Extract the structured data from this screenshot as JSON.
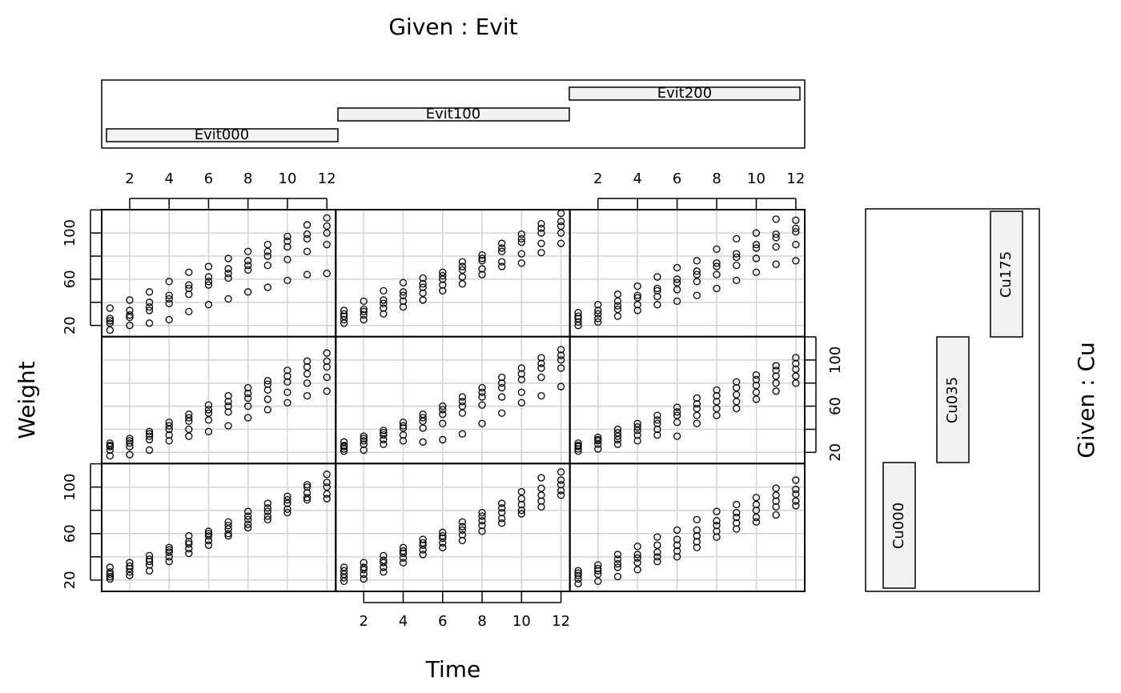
{
  "chart_data": {
    "type": "scatter",
    "xlabel": "Time",
    "ylabel": "Weight",
    "given_top": {
      "title": "Given : Evit",
      "levels": [
        "Evit000",
        "Evit100",
        "Evit200"
      ]
    },
    "given_right": {
      "title": "Given : Cu",
      "levels": [
        "Cu000",
        "Cu035",
        "Cu175"
      ]
    },
    "x": [
      1,
      2,
      3,
      4,
      5,
      6,
      7,
      8,
      9,
      10,
      11,
      12
    ],
    "xlim": [
      0.58,
      12.45
    ],
    "ylim": [
      10.3,
      120.2
    ],
    "xticks": [
      2,
      4,
      6,
      8,
      10,
      12
    ],
    "yticks": [
      20,
      40,
      60,
      80,
      100,
      120
    ],
    "ytick_labels": [
      20,
      60,
      100
    ],
    "grid": true,
    "color": "#000000",
    "panels": [
      {
        "values": [
          [
            16,
            24,
            26,
            35,
            22
          ],
          [
            20,
            27,
            33,
            42,
            29
          ],
          [
            22,
            33,
            36,
            49,
            40
          ],
          [
            25,
            39,
            43,
            58,
            46
          ],
          [
            32,
            47,
            52,
            66,
            55
          ],
          [
            38,
            55,
            58,
            71,
            62
          ],
          [
            43,
            61,
            65,
            78,
            69
          ],
          [
            49,
            68,
            72,
            84,
            76
          ],
          [
            53,
            72,
            80,
            90,
            84
          ],
          [
            59,
            77,
            88,
            97,
            93
          ],
          [
            64,
            84,
            95,
            107,
            99
          ],
          [
            65,
            90,
            100,
            113,
            106
          ]
        ]
      },
      {
        "values": [
          [
            22,
            25,
            28,
            33,
            30
          ],
          [
            25,
            29,
            32,
            41,
            34
          ],
          [
            30,
            35,
            39,
            50,
            42
          ],
          [
            36,
            41,
            46,
            57,
            49
          ],
          [
            42,
            48,
            53,
            61,
            56
          ],
          [
            50,
            55,
            60,
            66,
            63
          ],
          [
            56,
            62,
            68,
            75,
            71
          ],
          [
            64,
            69,
            76,
            81,
            78
          ],
          [
            71,
            75,
            84,
            91,
            87
          ],
          [
            74,
            82,
            92,
            99,
            95
          ],
          [
            83,
            91,
            100,
            108,
            104
          ],
          [
            91,
            100,
            106,
            117,
            110
          ]
        ]
      },
      {
        "values": [
          [
            20,
            23,
            26,
            31,
            28
          ],
          [
            23,
            26,
            30,
            38,
            33
          ],
          [
            28,
            34,
            37,
            47,
            41
          ],
          [
            33,
            38,
            44,
            54,
            46
          ],
          [
            38,
            45,
            50,
            62,
            52
          ],
          [
            41,
            51,
            57,
            70,
            60
          ],
          [
            46,
            58,
            64,
            76,
            67
          ],
          [
            52,
            64,
            71,
            86,
            74
          ],
          [
            59,
            72,
            79,
            95,
            82
          ],
          [
            66,
            78,
            87,
            100,
            90
          ],
          [
            73,
            88,
            96,
            112,
            99
          ],
          [
            76,
            90,
            101,
            111,
            104
          ]
        ]
      },
      {
        "values": [
          [
            17,
            22,
            25,
            28,
            26
          ],
          [
            18,
            25,
            28,
            32,
            30
          ],
          [
            22,
            31,
            34,
            38,
            36
          ],
          [
            30,
            35,
            40,
            46,
            43
          ],
          [
            34,
            40,
            47,
            53,
            50
          ],
          [
            38,
            48,
            54,
            61,
            57
          ],
          [
            43,
            55,
            60,
            69,
            64
          ],
          [
            50,
            60,
            67,
            76,
            71
          ],
          [
            57,
            66,
            74,
            82,
            79
          ],
          [
            63,
            72,
            81,
            91,
            86
          ],
          [
            69,
            80,
            88,
            99,
            94
          ],
          [
            73,
            85,
            94,
            106,
            99
          ]
        ]
      },
      {
        "values": [
          [
            21,
            23,
            26,
            29,
            25
          ],
          [
            22,
            27,
            30,
            34,
            32
          ],
          [
            27,
            31,
            35,
            39,
            37
          ],
          [
            30,
            35,
            41,
            46,
            43
          ],
          [
            29,
            41,
            47,
            53,
            50
          ],
          [
            31,
            45,
            53,
            60,
            57
          ],
          [
            36,
            54,
            60,
            68,
            64
          ],
          [
            45,
            61,
            68,
            76,
            72
          ],
          [
            54,
            68,
            76,
            85,
            80
          ],
          [
            63,
            72,
            83,
            93,
            88
          ],
          [
            69,
            85,
            93,
            102,
            97
          ],
          [
            77,
            93,
            100,
            109,
            104
          ]
        ]
      },
      {
        "values": [
          [
            21,
            23,
            25,
            28,
            26
          ],
          [
            23,
            27,
            30,
            33,
            31
          ],
          [
            27,
            31,
            34,
            40,
            37
          ],
          [
            30,
            35,
            39,
            45,
            42
          ],
          [
            35,
            40,
            45,
            52,
            48
          ],
          [
            34,
            46,
            52,
            59,
            55
          ],
          [
            45,
            52,
            58,
            67,
            62
          ],
          [
            52,
            58,
            64,
            74,
            69
          ],
          [
            58,
            64,
            70,
            81,
            76
          ],
          [
            66,
            72,
            78,
            87,
            83
          ],
          [
            73,
            80,
            86,
            95,
            91
          ],
          [
            80,
            86,
            92,
            102,
            97
          ]
        ]
      },
      {
        "values": [
          [
            21,
            23,
            25,
            31,
            27
          ],
          [
            24,
            27,
            30,
            35,
            32
          ],
          [
            28,
            33,
            36,
            41,
            38
          ],
          [
            36,
            40,
            44,
            48,
            46
          ],
          [
            43,
            47,
            51,
            58,
            53
          ],
          [
            50,
            54,
            58,
            62,
            60
          ],
          [
            58,
            60,
            64,
            70,
            67
          ],
          [
            65,
            68,
            72,
            79,
            75
          ],
          [
            72,
            75,
            79,
            86,
            82
          ],
          [
            78,
            81,
            86,
            92,
            89
          ],
          [
            89,
            91,
            95,
            102,
            100
          ],
          [
            90,
            94,
            100,
            111,
            104
          ]
        ]
      },
      {
        "values": [
          [
            19,
            22,
            25,
            31,
            28
          ],
          [
            21,
            25,
            29,
            35,
            31
          ],
          [
            27,
            31,
            35,
            41,
            37
          ],
          [
            35,
            39,
            43,
            48,
            45
          ],
          [
            42,
            46,
            50,
            55,
            52
          ],
          [
            48,
            52,
            56,
            61,
            58
          ],
          [
            54,
            59,
            63,
            70,
            66
          ],
          [
            62,
            67,
            71,
            78,
            75
          ],
          [
            69,
            73,
            78,
            86,
            82
          ],
          [
            77,
            80,
            85,
            96,
            90
          ],
          [
            83,
            88,
            93,
            108,
            99
          ],
          [
            93,
            97,
            102,
            113,
            106
          ]
        ]
      },
      {
        "values": [
          [
            17,
            21,
            24,
            28,
            26
          ],
          [
            19,
            25,
            28,
            33,
            30
          ],
          [
            23,
            31,
            34,
            42,
            38
          ],
          [
            29,
            35,
            39,
            49,
            42
          ],
          [
            36,
            40,
            44,
            57,
            50
          ],
          [
            40,
            45,
            50,
            63,
            55
          ],
          [
            48,
            53,
            58,
            72,
            63
          ],
          [
            57,
            62,
            67,
            79,
            71
          ],
          [
            64,
            69,
            74,
            85,
            78
          ],
          [
            70,
            74,
            80,
            91,
            85
          ],
          [
            76,
            83,
            88,
            99,
            93
          ],
          [
            84,
            88,
            94,
            106,
            98
          ]
        ]
      }
    ]
  }
}
